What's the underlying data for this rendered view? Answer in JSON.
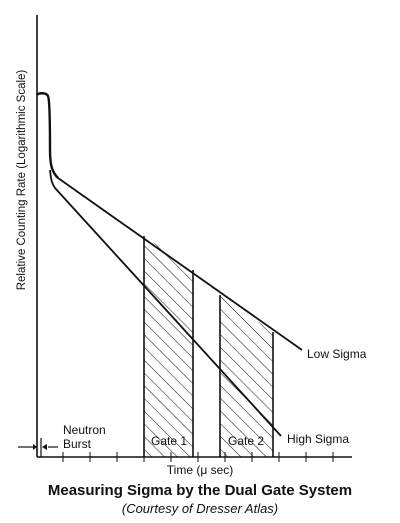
{
  "figure": {
    "y_axis_label": "Relative Counting Rate  (Logarithmic Scale)",
    "x_axis_label": "Time (μ sec)",
    "neutron_burst_label": [
      "Neutron",
      "Burst"
    ],
    "gate1_label": "Gate 1",
    "gate2_label": "Gate 2",
    "low_sigma_label": "Low Sigma",
    "high_sigma_label": "High Sigma"
  },
  "caption": {
    "title": "Measuring Sigma by the Dual Gate System",
    "subtitle": "(Courtesy of Dresser Atlas)"
  }
}
